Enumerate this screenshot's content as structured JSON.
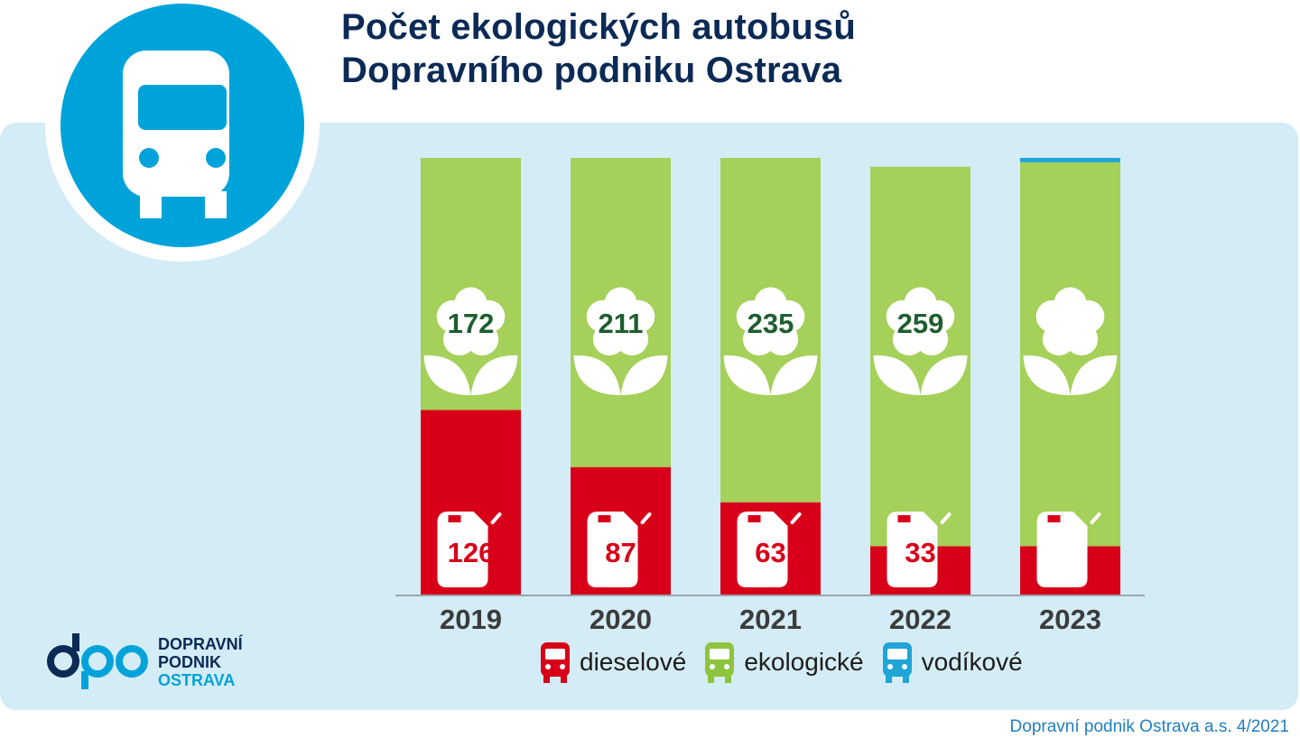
{
  "title": {
    "line1": "Počet ekologických autobusů",
    "line2": "Dopravního podniku Ostrava"
  },
  "colors": {
    "diesel": "#d80019",
    "eco": "#a5d059",
    "hydrogen": "#1fa5d6",
    "panel": "#d4ecf6",
    "title": "#0b2a55",
    "eco_label": "#1e5e2e"
  },
  "chart_data": {
    "type": "bar",
    "stacked": true,
    "categories": [
      "2019",
      "2020",
      "2021",
      "2022",
      "2023"
    ],
    "series": [
      {
        "name": "dieselové",
        "values": [
          126,
          87,
          63,
          33,
          33
        ],
        "labels": [
          "126",
          "87",
          "63",
          "33",
          ""
        ]
      },
      {
        "name": "ekologické",
        "values": [
          172,
          211,
          235,
          259,
          262
        ],
        "labels": [
          "172",
          "211",
          "235",
          "259",
          ""
        ]
      },
      {
        "name": "vodíkové",
        "values": [
          0,
          0,
          0,
          0,
          3
        ],
        "labels": [
          "",
          "",
          "",
          "",
          ""
        ]
      }
    ],
    "ylim": [
      0,
      298
    ],
    "grid": false,
    "legend": "bottom"
  },
  "legend": [
    {
      "label": "dieselové",
      "color": "#d80019",
      "icon": "bus-icon"
    },
    {
      "label": "ekologické",
      "color": "#8cc43e",
      "icon": "bus-icon"
    },
    {
      "label": "vodíkové",
      "color": "#1fa5d6",
      "icon": "bus-icon"
    }
  ],
  "logo": {
    "line1": "DOPRAVNÍ",
    "line2": "PODNIK",
    "line3": "OSTRAVA"
  },
  "footer": "Dopravní podnik Ostrava a.s.  4/2021"
}
